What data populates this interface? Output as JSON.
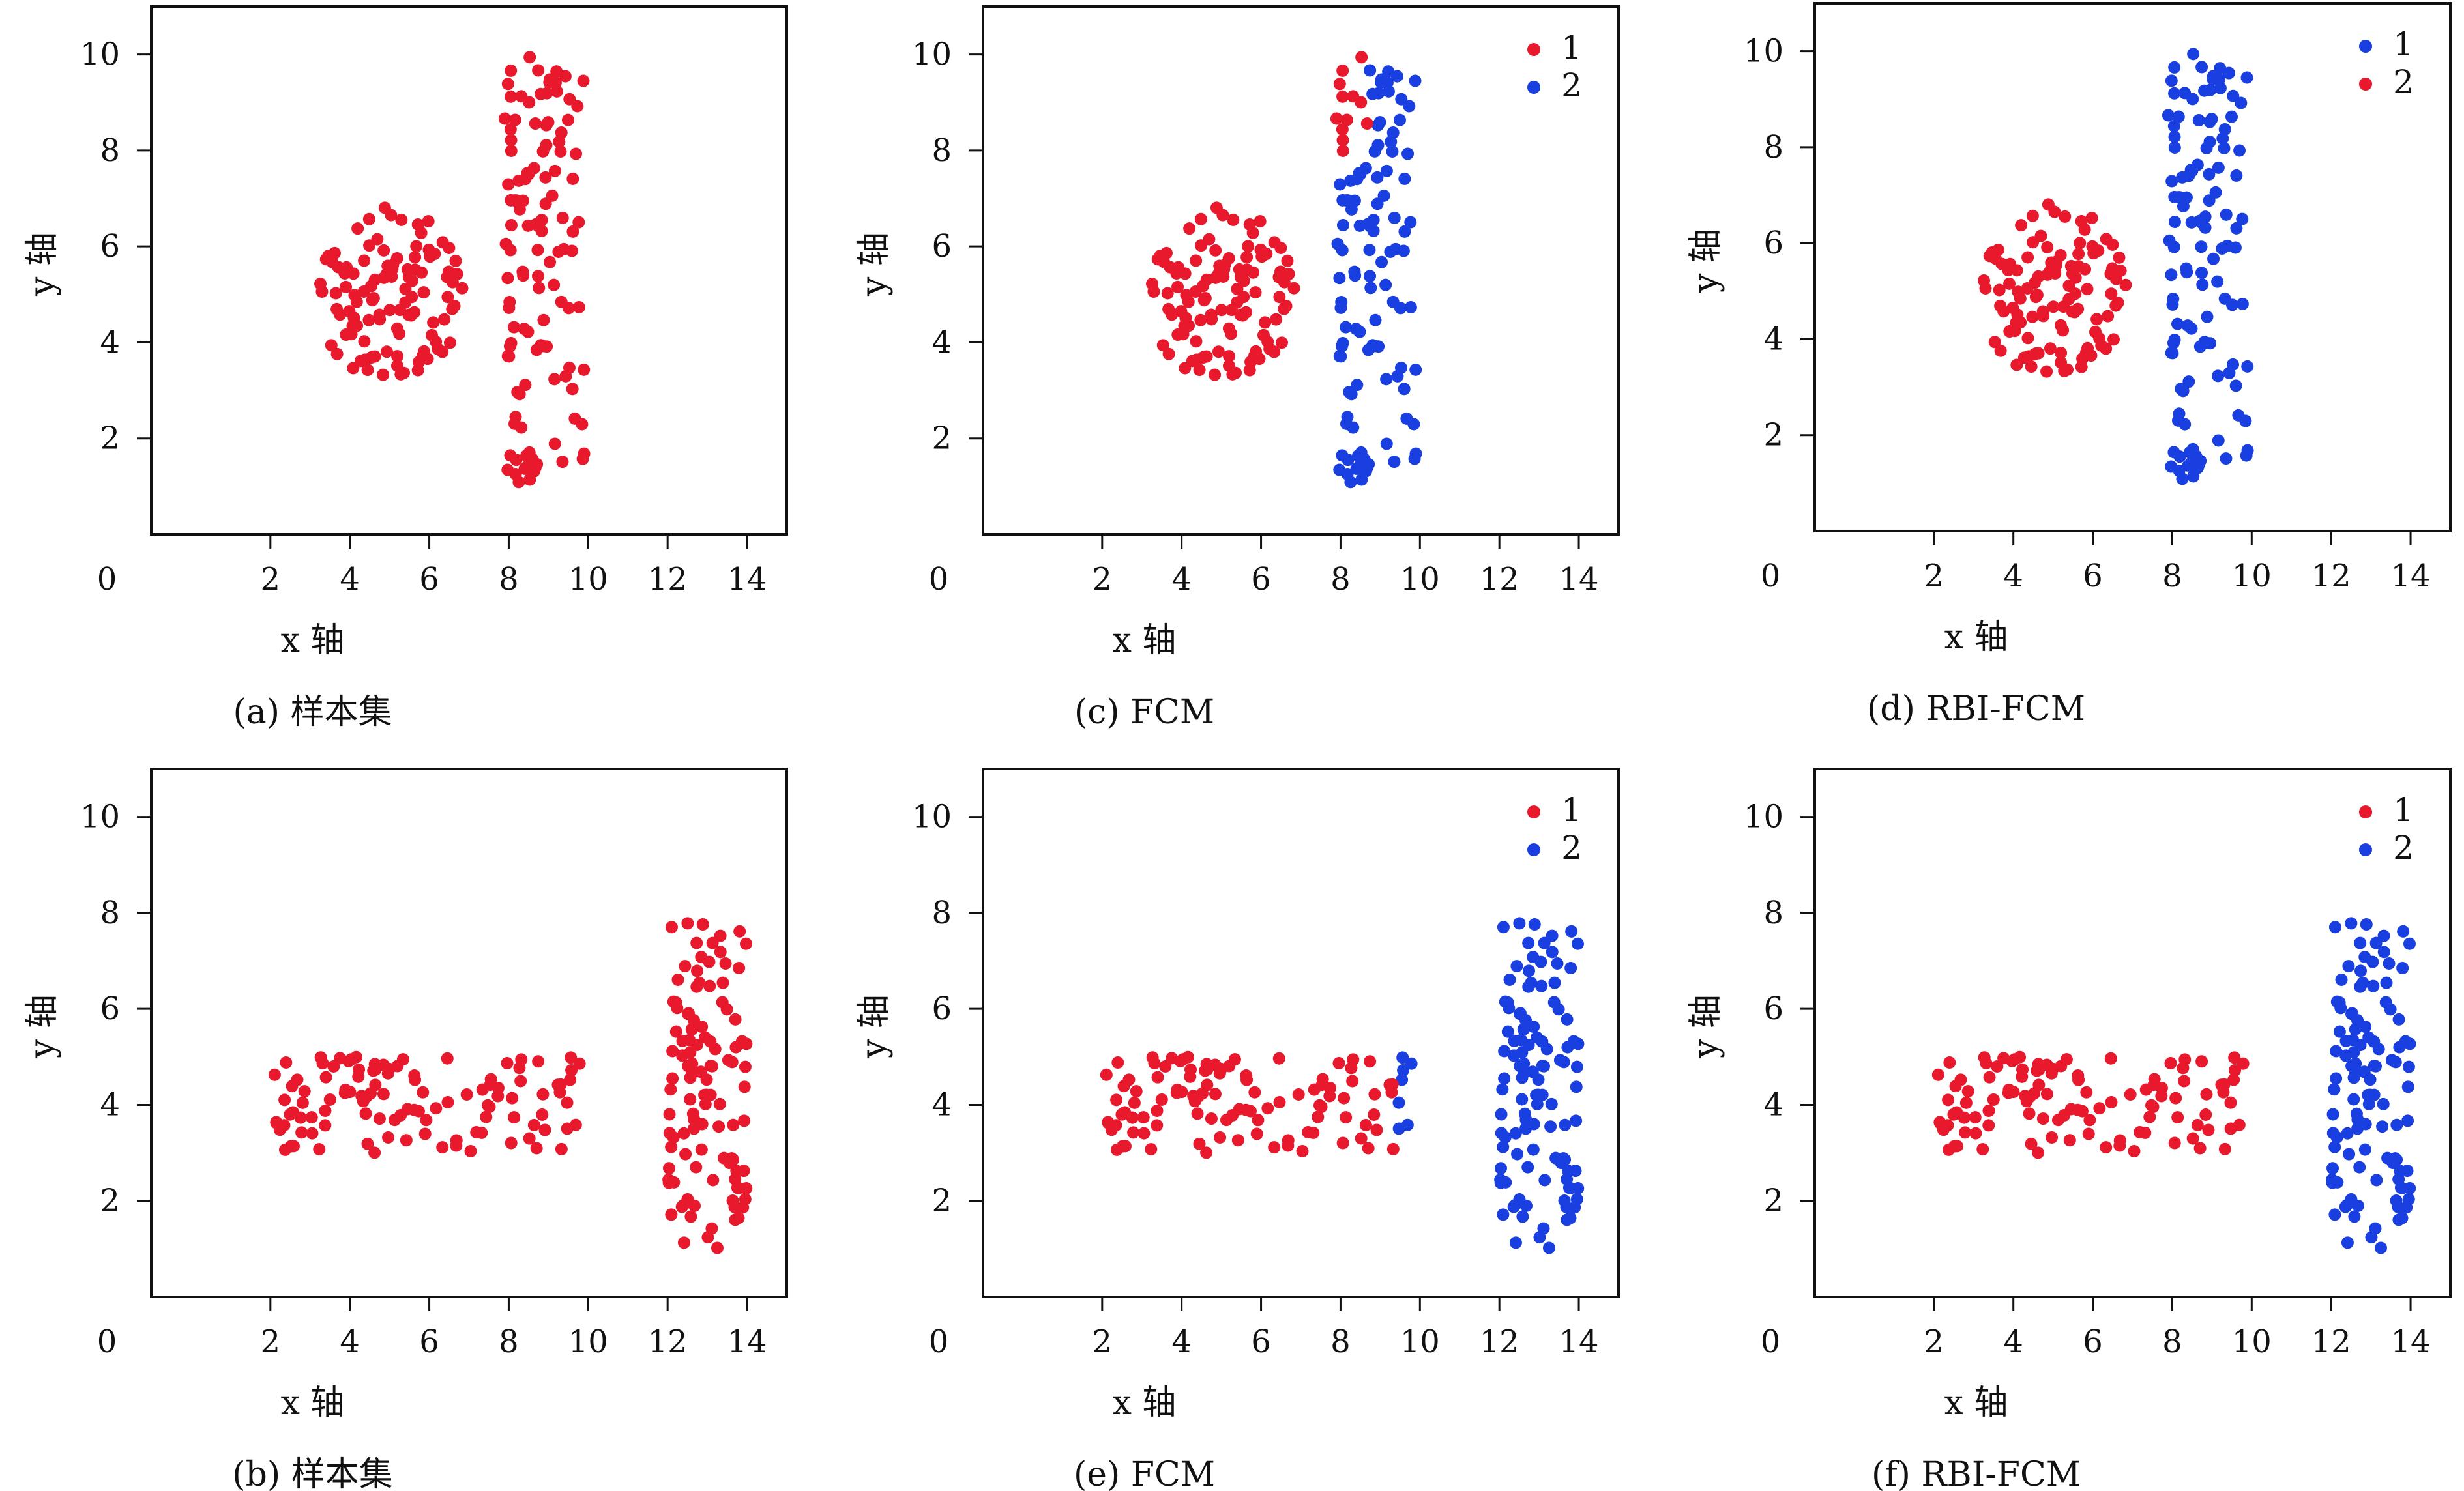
{
  "figure": {
    "panels_order": [
      "a",
      "c",
      "d",
      "b",
      "e",
      "f"
    ]
  },
  "chart_data": [
    {
      "id": "a",
      "type": "scatter",
      "caption": "(a) 样本集",
      "xlabel": "x 轴",
      "ylabel": "y 轴",
      "xlim": [
        -1,
        15
      ],
      "ylim": [
        0,
        11
      ],
      "xticks": [
        2,
        4,
        6,
        8,
        10,
        12,
        14
      ],
      "yticks": [
        2,
        4,
        6,
        8,
        10
      ],
      "origin_label": "0",
      "legend": null,
      "series": [
        {
          "name": "",
          "color": "#e8192c",
          "generator": {
            "shape": "circle",
            "cx": 5.0,
            "cy": 5.0,
            "r": 1.85,
            "count": 110,
            "seed": 11
          }
        },
        {
          "name": "",
          "color": "#e8192c",
          "generator": {
            "shape": "rect",
            "x0": 7.9,
            "x1": 9.9,
            "y0": 1.0,
            "y1": 10.0,
            "count": 120,
            "seed": 23
          }
        }
      ]
    },
    {
      "id": "c",
      "type": "scatter",
      "caption": "(c) FCM",
      "xlabel": "x 轴",
      "ylabel": "y 轴",
      "xlim": [
        -1,
        15
      ],
      "ylim": [
        0,
        11
      ],
      "xticks": [
        2,
        4,
        6,
        8,
        10,
        12,
        14
      ],
      "yticks": [
        2,
        4,
        6,
        8,
        10
      ],
      "origin_label": "0",
      "legend": [
        {
          "label": "1",
          "color": "#e8192c"
        },
        {
          "label": "2",
          "color": "#1a3fe0"
        }
      ],
      "split_rule": {
        "region": "rect",
        "color_above": "#e8192c",
        "color_below": "#1a3fe0",
        "y_split": 7.8,
        "x_split": 8.7
      },
      "series": [
        {
          "name": "1",
          "color": "#e8192c",
          "generator": {
            "shape": "circle",
            "cx": 5.0,
            "cy": 5.0,
            "r": 1.85,
            "count": 110,
            "seed": 11
          }
        },
        {
          "name": "2",
          "color": "#1a3fe0",
          "generator": {
            "shape": "rect",
            "x0": 7.9,
            "x1": 9.9,
            "y0": 1.0,
            "y1": 10.0,
            "count": 120,
            "seed": 23
          }
        }
      ]
    },
    {
      "id": "d",
      "type": "scatter",
      "caption": "(d) RBI-FCM",
      "xlabel": "x 轴",
      "ylabel": "y 轴",
      "xlim": [
        -1,
        15
      ],
      "ylim": [
        0,
        11
      ],
      "xticks": [
        2,
        4,
        6,
        8,
        10,
        12,
        14
      ],
      "yticks": [
        2,
        4,
        6,
        8,
        10
      ],
      "origin_label": "0",
      "legend": [
        {
          "label": "1",
          "color": "#1a3fe0"
        },
        {
          "label": "2",
          "color": "#e8192c"
        }
      ],
      "series": [
        {
          "name": "2",
          "color": "#e8192c",
          "generator": {
            "shape": "circle",
            "cx": 5.0,
            "cy": 5.0,
            "r": 1.85,
            "count": 110,
            "seed": 11
          }
        },
        {
          "name": "1",
          "color": "#1a3fe0",
          "generator": {
            "shape": "rect",
            "x0": 7.9,
            "x1": 9.9,
            "y0": 1.0,
            "y1": 10.0,
            "count": 120,
            "seed": 23
          }
        }
      ]
    },
    {
      "id": "b",
      "type": "scatter",
      "caption": "(b) 样本集",
      "xlabel": "x 轴",
      "ylabel": "y 轴",
      "xlim": [
        -1,
        15
      ],
      "ylim": [
        0,
        11
      ],
      "xticks": [
        2,
        4,
        6,
        8,
        10,
        12,
        14
      ],
      "yticks": [
        2,
        4,
        6,
        8,
        10
      ],
      "origin_label": "0",
      "legend": null,
      "series": [
        {
          "name": "",
          "color": "#e8192c",
          "generator": {
            "shape": "rect",
            "x0": 2.0,
            "x1": 10.0,
            "y0": 3.0,
            "y1": 5.0,
            "count": 110,
            "seed": 37
          }
        },
        {
          "name": "",
          "color": "#e8192c",
          "generator": {
            "shape": "rect",
            "x0": 12.0,
            "x1": 14.0,
            "y0": 1.0,
            "y1": 7.8,
            "count": 110,
            "seed": 41
          }
        }
      ]
    },
    {
      "id": "e",
      "type": "scatter",
      "caption": "(e) FCM",
      "xlabel": "x 轴",
      "ylabel": "y 轴",
      "xlim": [
        -1,
        15
      ],
      "ylim": [
        0,
        11
      ],
      "xticks": [
        2,
        4,
        6,
        8,
        10,
        12,
        14
      ],
      "yticks": [
        2,
        4,
        6,
        8,
        10
      ],
      "origin_label": "0",
      "legend": [
        {
          "label": "1",
          "color": "#e8192c"
        },
        {
          "label": "2",
          "color": "#1a3fe0"
        }
      ],
      "split_rule": {
        "region": "band",
        "color_left": "#e8192c",
        "color_right": "#1a3fe0",
        "x_split": 9.35
      },
      "series": [
        {
          "name": "1",
          "color": "#e8192c",
          "generator": {
            "shape": "rect",
            "x0": 2.0,
            "x1": 10.0,
            "y0": 3.0,
            "y1": 5.0,
            "count": 110,
            "seed": 37
          }
        },
        {
          "name": "2",
          "color": "#1a3fe0",
          "generator": {
            "shape": "rect",
            "x0": 12.0,
            "x1": 14.0,
            "y0": 1.0,
            "y1": 7.8,
            "count": 110,
            "seed": 41
          }
        }
      ]
    },
    {
      "id": "f",
      "type": "scatter",
      "caption": "(f) RBI-FCM",
      "xlabel": "x 轴",
      "ylabel": "y 轴",
      "xlim": [
        -1,
        15
      ],
      "ylim": [
        0,
        11
      ],
      "xticks": [
        2,
        4,
        6,
        8,
        10,
        12,
        14
      ],
      "yticks": [
        2,
        4,
        6,
        8,
        10
      ],
      "origin_label": "0",
      "legend": [
        {
          "label": "1",
          "color": "#e8192c"
        },
        {
          "label": "2",
          "color": "#1a3fe0"
        }
      ],
      "series": [
        {
          "name": "1",
          "color": "#e8192c",
          "generator": {
            "shape": "rect",
            "x0": 2.0,
            "x1": 10.0,
            "y0": 3.0,
            "y1": 5.0,
            "count": 110,
            "seed": 37
          }
        },
        {
          "name": "2",
          "color": "#1a3fe0",
          "generator": {
            "shape": "rect",
            "x0": 12.0,
            "x1": 14.0,
            "y0": 1.0,
            "y1": 7.8,
            "count": 110,
            "seed": 41
          }
        }
      ]
    }
  ]
}
